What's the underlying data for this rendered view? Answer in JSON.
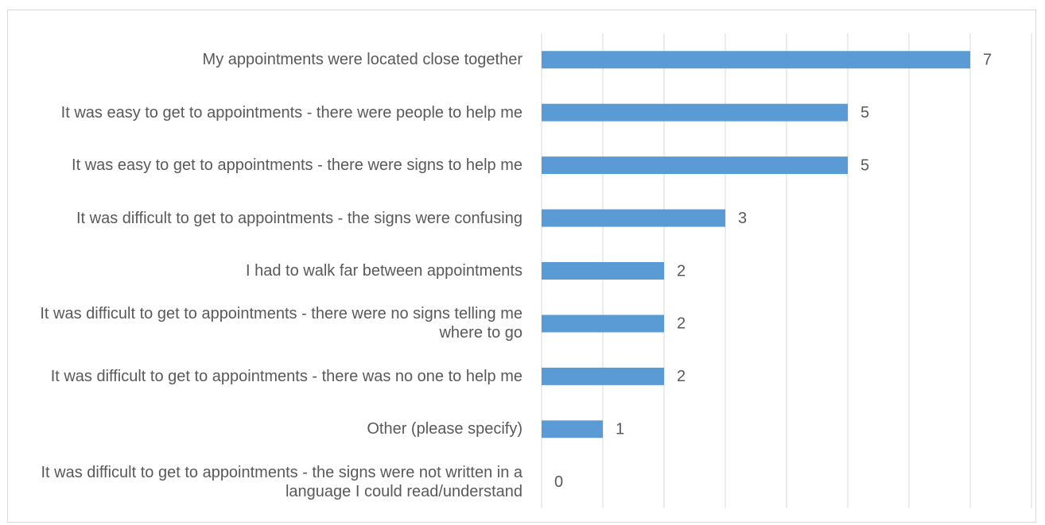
{
  "chart_data": {
    "type": "barh",
    "categories": [
      "My appointments were located close together",
      "It was easy to get to appointments - there were people to help me",
      "It was easy to get to appointments - there were signs to help me",
      "It was difficult to get to appointments - the signs were confusing",
      "I had to walk far between appointments",
      "It was difficult to get to appointments - there were no signs telling me where to go",
      "It was difficult to get to appointments - there was no one to help me",
      "Other (please specify)",
      "It was difficult to get to appointments - the signs were not written in a language I could read/understand"
    ],
    "values": [
      7,
      5,
      5,
      3,
      2,
      2,
      2,
      1,
      0
    ],
    "color": "#5b9bd5",
    "xlim": [
      0,
      8
    ],
    "xticks": [
      0,
      1,
      2,
      3,
      4,
      5,
      6,
      7,
      8
    ],
    "grid": true
  }
}
